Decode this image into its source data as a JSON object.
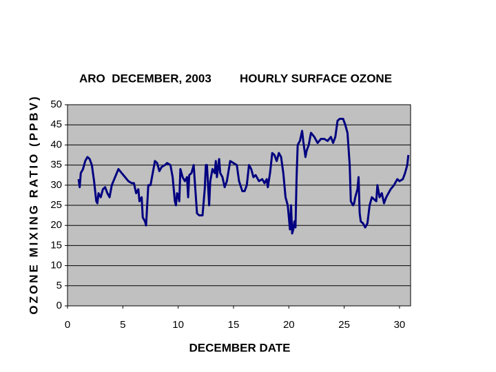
{
  "chart_data": {
    "type": "line",
    "title": "ARO  DECEMBER, 2003",
    "subtitle": "HOURLY SURFACE OZONE",
    "x_label": "DECEMBER DATE",
    "y_label": "OZONE MIXING RATIO (PPBV)",
    "xlim": [
      0,
      31
    ],
    "xticks": [
      0,
      5,
      10,
      15,
      20,
      25,
      30
    ],
    "ylim": [
      0,
      50
    ],
    "yticks": [
      0,
      5,
      10,
      15,
      20,
      25,
      30,
      35,
      40,
      45,
      50
    ],
    "grid": true,
    "background": "#c0c0c0",
    "series": [
      {
        "color": "#000080",
        "x": [
          1.0,
          1.1,
          1.2,
          1.4,
          1.6,
          1.8,
          2.0,
          2.2,
          2.4,
          2.6,
          2.7,
          2.8,
          3.0,
          3.2,
          3.4,
          3.6,
          3.8,
          4.0,
          4.3,
          4.6,
          4.9,
          5.2,
          5.5,
          5.8,
          6.0,
          6.2,
          6.4,
          6.5,
          6.7,
          6.8,
          7.0,
          7.1,
          7.2,
          7.3,
          7.5,
          7.7,
          7.9,
          8.1,
          8.3,
          8.5,
          8.8,
          9.0,
          9.3,
          9.5,
          9.7,
          9.8,
          9.9,
          10.0,
          10.1,
          10.2,
          10.4,
          10.6,
          10.8,
          10.9,
          11.0,
          11.2,
          11.4,
          11.6,
          11.7,
          11.9,
          12.2,
          12.4,
          12.5,
          12.6,
          12.7,
          12.8,
          12.9,
          13.1,
          13.3,
          13.4,
          13.5,
          13.7,
          13.8,
          14.0,
          14.2,
          14.4,
          14.7,
          15.0,
          15.3,
          15.5,
          15.8,
          16.0,
          16.2,
          16.4,
          16.6,
          16.8,
          17.0,
          17.3,
          17.6,
          17.8,
          18.0,
          18.1,
          18.3,
          18.5,
          18.7,
          18.9,
          19.1,
          19.3,
          19.5,
          19.7,
          19.9,
          20.0,
          20.1,
          20.2,
          20.3,
          20.4,
          20.5,
          20.6,
          20.7,
          20.8,
          21.0,
          21.2,
          21.3,
          21.5,
          21.6,
          21.8,
          22.0,
          22.3,
          22.6,
          22.9,
          23.2,
          23.5,
          23.8,
          24.0,
          24.2,
          24.4,
          24.6,
          24.9,
          25.1,
          25.3,
          25.5,
          25.6,
          25.8,
          25.9,
          26.0,
          26.2,
          26.3,
          26.4,
          26.5,
          26.7,
          26.9,
          27.1,
          27.3,
          27.5,
          27.7,
          27.9,
          28.0,
          28.2,
          28.4,
          28.6,
          28.8,
          29.0,
          29.2,
          29.5,
          29.8,
          30.0,
          30.3,
          30.5,
          30.7,
          30.8
        ],
        "values": [
          31.5,
          29.5,
          33,
          34,
          36,
          37,
          36.5,
          35,
          31,
          26,
          25.5,
          28,
          27,
          29,
          29.5,
          28,
          27,
          30,
          32,
          34,
          33,
          32,
          31,
          30.5,
          30.5,
          28,
          29,
          26,
          27,
          22,
          21,
          20,
          25,
          30,
          30,
          33,
          36,
          35.5,
          33.5,
          34.5,
          35,
          35.5,
          35,
          32,
          26,
          25,
          28,
          27.5,
          26,
          34,
          32,
          31,
          32,
          27,
          32.5,
          33,
          35,
          27,
          23,
          22.5,
          22.5,
          29,
          35,
          35,
          30,
          25,
          31,
          34,
          33,
          36,
          32,
          36.5,
          33,
          32,
          29.5,
          31,
          36,
          35.5,
          35,
          31,
          28.5,
          28.5,
          30,
          35,
          34,
          32,
          32.5,
          31,
          31.5,
          30.5,
          31.5,
          29.5,
          33,
          38,
          37.5,
          36,
          38,
          37,
          33,
          27,
          25,
          22,
          19,
          25,
          18,
          19,
          21,
          19.5,
          32,
          40,
          41,
          43.5,
          41,
          37,
          38.5,
          40,
          43,
          42,
          40.5,
          41.5,
          41.5,
          41,
          42,
          40.5,
          42,
          46,
          46.5,
          46.5,
          45,
          43,
          35,
          26,
          25,
          25.5,
          27,
          29,
          32,
          23,
          21,
          20.5,
          19.5,
          20.5,
          25,
          27,
          26.5,
          26,
          30,
          27,
          28,
          25.5,
          27,
          28,
          29,
          30,
          31.5,
          31,
          31.5,
          33,
          35,
          37.5
        ]
      }
    ]
  }
}
